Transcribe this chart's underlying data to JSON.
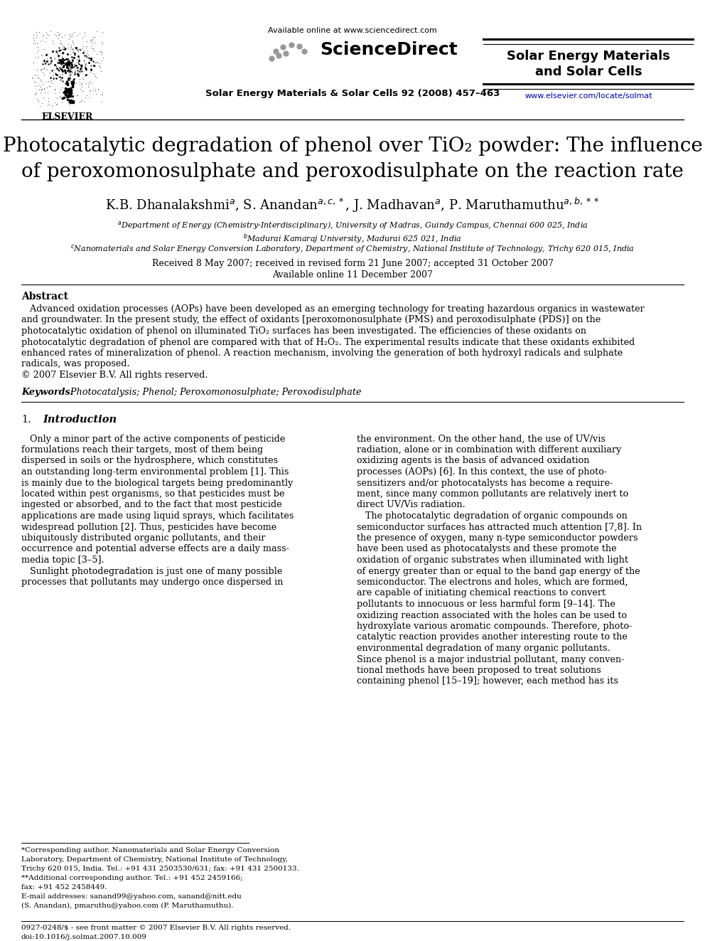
{
  "bg_color": "#ffffff",
  "available_online": "Available online at www.sciencedirect.com",
  "journal_name": "Solar Energy Materials & Solar Cells 92 (2008) 457–463",
  "journal_title_line1": "Solar Energy Materials",
  "journal_title_line2": "and Solar Cells",
  "url": "www.elsevier.com/locate/solmat",
  "elsevier_text": "ELSEVIER",
  "title_part1": "Photocatalytic degradation of phenol over TiO",
  "title_sub": "2",
  "title_part2": " powder: The influence",
  "title_line2": "of peroxomonosulphate and peroxodisulphate on the reaction rate",
  "received": "Received 8 May 2007; received in revised form 21 June 2007; accepted 31 October 2007",
  "available": "Available online 11 December 2007",
  "abstract_title": "Abstract",
  "keywords_label": "Keywords:",
  "keywords_text": " Photocatalysis; Phenol; Peroxomonosulphate; Peroxodisulphate",
  "section1_num": "1.",
  "section1_title": "Introduction",
  "footnote_bottom": "0927-0248/$ - see front matter © 2007 Elsevier B.V. All rights reserved.\ndoi:10.1016/j.solmat.2007.10.009"
}
